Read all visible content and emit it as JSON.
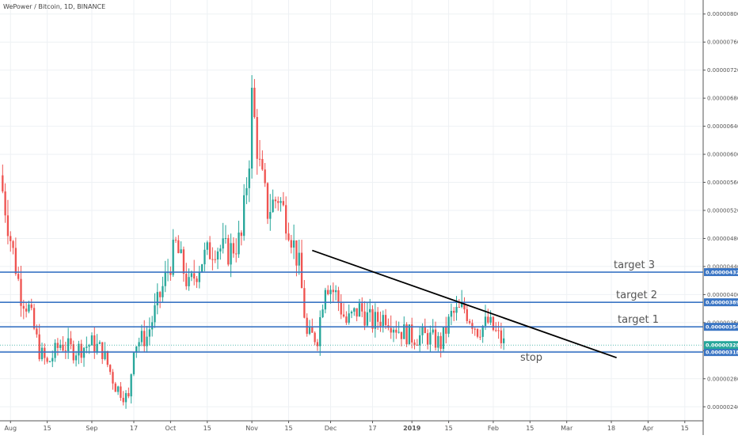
{
  "header": {
    "title": "WePower / Bitcoin, 1D, BINANCE"
  },
  "chart_data": {
    "type": "candlestick",
    "title": "WePower / Bitcoin, 1D, BINANCE",
    "ylim": [
      2.2e-06,
      8.2e-06
    ],
    "y_ticks": [
      "0.00000240",
      "0.00000280",
      "0.00000320",
      "0.00000360",
      "0.00000400",
      "0.00000440",
      "0.00000480",
      "0.00000520",
      "0.00000560",
      "0.00000600",
      "0.00000640",
      "0.00000680",
      "0.00000720",
      "0.00000760",
      "0.00000800"
    ],
    "y_tick_values": [
      2.4e-06,
      2.8e-06,
      3.2e-06,
      3.6e-06,
      4e-06,
      4.4e-06,
      4.8e-06,
      5.2e-06,
      5.6e-06,
      6e-06,
      6.4e-06,
      6.8e-06,
      7.2e-06,
      7.6e-06,
      8e-06
    ],
    "x_ticks": [
      "Aug",
      "15",
      "Sep",
      "17",
      "Oct",
      "15",
      "Nov",
      "15",
      "Dec",
      "17",
      "2019",
      "15",
      "Feb",
      "15",
      "Mar",
      "18",
      "Apr",
      "15"
    ],
    "x_tick_dates": [
      "2018-08-01",
      "2018-08-15",
      "2018-09-01",
      "2018-09-17",
      "2018-10-01",
      "2018-10-15",
      "2018-11-01",
      "2018-11-15",
      "2018-12-01",
      "2018-12-17",
      "2019-01-01",
      "2019-01-15",
      "2019-02-01",
      "2019-02-15",
      "2019-03-01",
      "2019-03-18",
      "2019-04-01",
      "2019-04-15"
    ],
    "x_range": [
      "2018-07-28",
      "2019-04-22"
    ],
    "close_path": [
      [
        "2018-07-28",
        5.7e-06
      ],
      [
        "2018-08-01",
        4.8e-06
      ],
      [
        "2018-08-05",
        4e-06
      ],
      [
        "2018-08-08",
        3.8e-06
      ],
      [
        "2018-08-12",
        3.2e-06
      ],
      [
        "2018-08-15",
        3e-06
      ],
      [
        "2018-08-20",
        3.3e-06
      ],
      [
        "2018-08-25",
        3.2e-06
      ],
      [
        "2018-09-01",
        3.3e-06
      ],
      [
        "2018-09-05",
        3.2e-06
      ],
      [
        "2018-09-10",
        2.7e-06
      ],
      [
        "2018-09-15",
        2.5e-06
      ],
      [
        "2018-09-17",
        3.3e-06
      ],
      [
        "2018-09-22",
        3.4e-06
      ],
      [
        "2018-09-28",
        4.1e-06
      ],
      [
        "2018-10-03",
        4.7e-06
      ],
      [
        "2018-10-08",
        4.1e-06
      ],
      [
        "2018-10-13",
        4.5e-06
      ],
      [
        "2018-10-18",
        4.7e-06
      ],
      [
        "2018-10-23",
        4.6e-06
      ],
      [
        "2018-10-28",
        4.8e-06
      ],
      [
        "2018-10-31",
        6e-06
      ],
      [
        "2018-11-01",
        6.8e-06
      ],
      [
        "2018-11-04",
        5.8e-06
      ],
      [
        "2018-11-07",
        5.2e-06
      ],
      [
        "2018-11-11",
        5.4e-06
      ],
      [
        "2018-11-15",
        5e-06
      ],
      [
        "2018-11-19",
        4.4e-06
      ],
      [
        "2018-11-22",
        3.4e-06
      ],
      [
        "2018-11-26",
        3.4e-06
      ],
      [
        "2018-11-29",
        4.2e-06
      ],
      [
        "2018-12-03",
        4e-06
      ],
      [
        "2018-12-07",
        3.6e-06
      ],
      [
        "2018-12-12",
        3.8e-06
      ],
      [
        "2018-12-17",
        3.6e-06
      ],
      [
        "2018-12-22",
        3.7e-06
      ],
      [
        "2018-12-27",
        3.5e-06
      ],
      [
        "2019-01-01",
        3.4e-06
      ],
      [
        "2019-01-07",
        3.4e-06
      ],
      [
        "2019-01-12",
        3.3e-06
      ],
      [
        "2019-01-16",
        3.7e-06
      ],
      [
        "2019-01-21",
        3.8e-06
      ],
      [
        "2019-01-26",
        3.5e-06
      ],
      [
        "2019-01-30",
        3.6e-06
      ],
      [
        "2019-02-03",
        3.4e-06
      ],
      [
        "2019-02-05",
        3.3e-06
      ]
    ],
    "trendline": {
      "from": [
        "2018-11-24",
        4.63e-06
      ],
      "to": [
        "2019-03-20",
        3.1e-06
      ],
      "color": "#000000"
    },
    "levels": [
      {
        "label": "target 3",
        "value": 4.32e-06,
        "value_label": "0.00000432"
      },
      {
        "label": "target 2",
        "value": 3.89e-06,
        "value_label": "0.00000389"
      },
      {
        "label": "target 1",
        "value": 3.54e-06,
        "value_label": "0.00000354"
      },
      {
        "label": "stop",
        "value": 3.18e-06,
        "value_label": "0.00000318"
      }
    ],
    "last_price": {
      "value": 3.28e-06,
      "value_label": "0.00000328"
    },
    "colors": {
      "up": "#26a69a",
      "down": "#ef5350",
      "level": "#3a75c4",
      "last": "#26a69a",
      "grid": "#eef1f4"
    }
  }
}
